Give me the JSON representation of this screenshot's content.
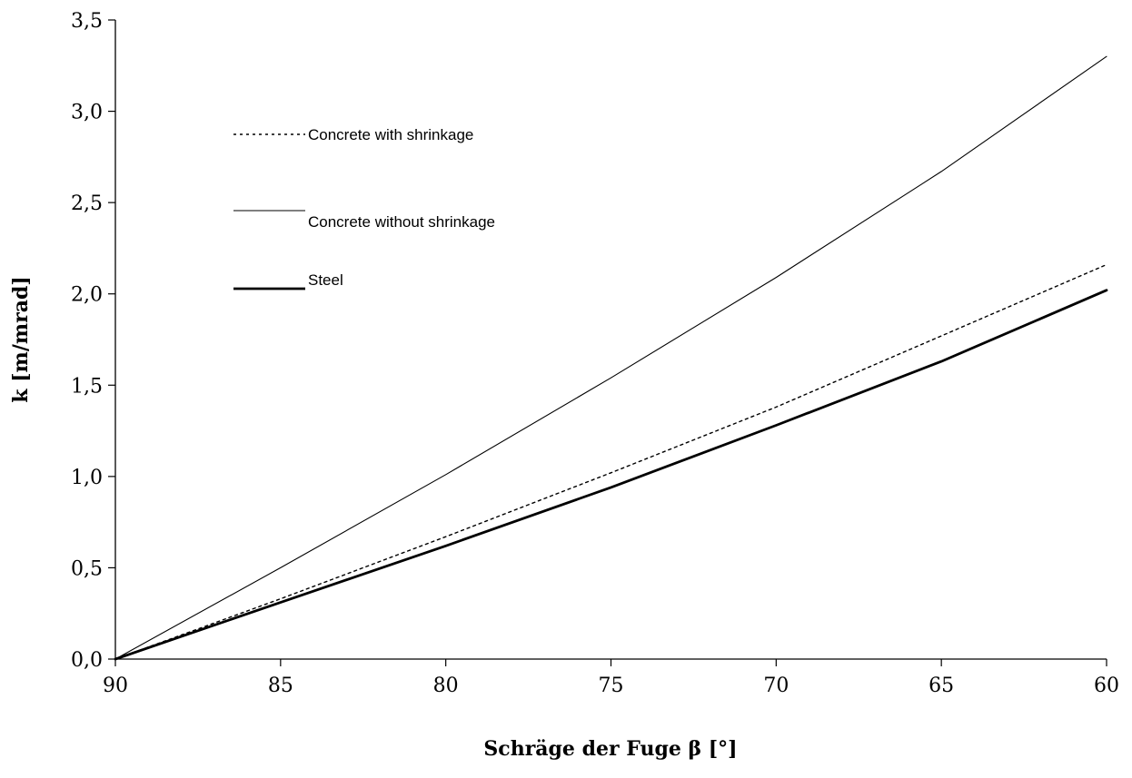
{
  "chart_data": {
    "type": "line",
    "xlabel": "Schräge der Fuge β [°]",
    "ylabel": "k [m/mrad]",
    "xlim": [
      90,
      60
    ],
    "ylim": [
      0,
      3.5
    ],
    "x_reversed": true,
    "grid": false,
    "legend_position": "top-left",
    "x_ticks": [
      "90",
      "85",
      "80",
      "75",
      "70",
      "65",
      "60"
    ],
    "y_ticks": [
      "0,0",
      "0,5",
      "1,0",
      "1,5",
      "2,0",
      "2,5",
      "3,0",
      "3,5"
    ],
    "series": [
      {
        "name": "Concrete with shrinkage",
        "style": "dotted",
        "x": [
          90,
          85,
          80,
          75,
          70,
          65,
          60
        ],
        "y": [
          0,
          0.33,
          0.67,
          1.02,
          1.38,
          1.77,
          2.16
        ]
      },
      {
        "name": "Concrete without shrinkage",
        "style": "thin",
        "x": [
          90,
          85,
          80,
          75,
          70,
          65,
          60
        ],
        "y": [
          0,
          0.5,
          1.01,
          1.54,
          2.09,
          2.67,
          3.3
        ]
      },
      {
        "name": "Steel",
        "style": "thick",
        "x": [
          90,
          85,
          80,
          75,
          70,
          65,
          60
        ],
        "y": [
          0,
          0.31,
          0.62,
          0.94,
          1.28,
          1.63,
          2.02
        ]
      }
    ]
  }
}
